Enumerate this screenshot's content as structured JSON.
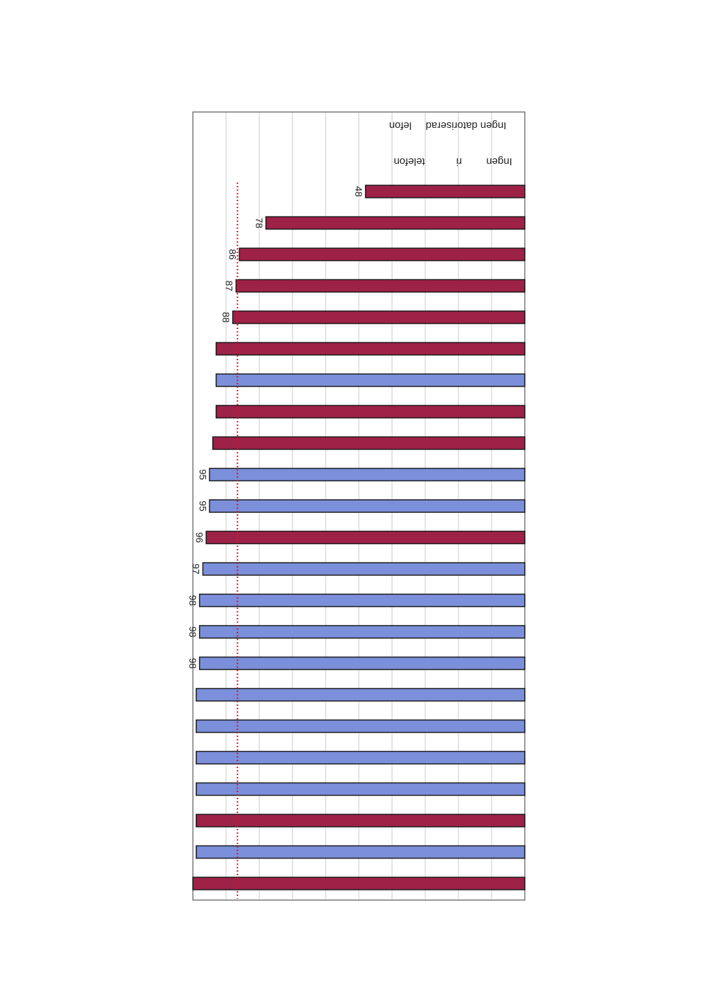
{
  "page": {
    "orientation": "rotated 180 degrees (scanned upside-down)"
  },
  "chart_data": {
    "type": "bar",
    "orientation": "horizontal",
    "xlim": [
      0,
      100
    ],
    "grid": true,
    "reference_line": {
      "value": 87,
      "color": "#e0101a",
      "style": "dotted"
    },
    "colors": {
      "red": "#9e2148",
      "blue": "#7b8fdb",
      "grid": "#c8c8c8",
      "frame": "#777777"
    },
    "notes": [
      {
        "text": "Ingen",
        "row": 0
      },
      {
        "text": "ri",
        "row": 0
      },
      {
        "text": "telefon",
        "row": 0
      },
      {
        "text": "Ingen datoriserad",
        "row": 1
      },
      {
        "text": "lefon",
        "row": 1
      }
    ],
    "bars": [
      {
        "value": 48,
        "color": "red",
        "label": "48"
      },
      {
        "value": 78,
        "color": "red",
        "label": "78"
      },
      {
        "value": 86,
        "color": "red",
        "label": "86"
      },
      {
        "value": 87,
        "color": "red",
        "label": "87"
      },
      {
        "value": 88,
        "color": "red",
        "label": "88"
      },
      {
        "value": 93,
        "color": "red",
        "label": ""
      },
      {
        "value": 93,
        "color": "blue",
        "label": ""
      },
      {
        "value": 93,
        "color": "red",
        "label": ""
      },
      {
        "value": 94,
        "color": "red",
        "label": ""
      },
      {
        "value": 95,
        "color": "blue",
        "label": "95"
      },
      {
        "value": 95,
        "color": "blue",
        "label": "95"
      },
      {
        "value": 96,
        "color": "red",
        "label": "96"
      },
      {
        "value": 97,
        "color": "blue",
        "label": "97"
      },
      {
        "value": 98,
        "color": "blue",
        "label": "98"
      },
      {
        "value": 98,
        "color": "blue",
        "label": "98"
      },
      {
        "value": 98,
        "color": "blue",
        "label": "98"
      },
      {
        "value": 99,
        "color": "blue",
        "label": ""
      },
      {
        "value": 99,
        "color": "blue",
        "label": ""
      },
      {
        "value": 99,
        "color": "blue",
        "label": ""
      },
      {
        "value": 99,
        "color": "blue",
        "label": ""
      },
      {
        "value": 99,
        "color": "red",
        "label": ""
      },
      {
        "value": 99,
        "color": "blue",
        "label": ""
      },
      {
        "value": 100,
        "color": "red",
        "label": ""
      }
    ]
  }
}
